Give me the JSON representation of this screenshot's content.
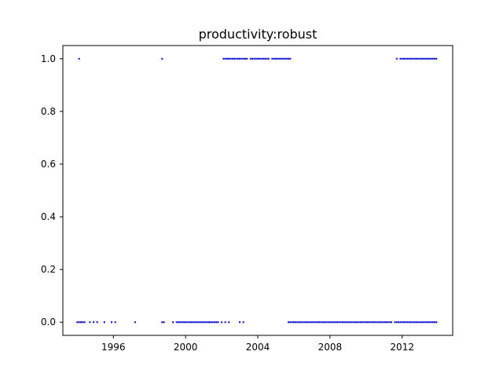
{
  "chart_data": {
    "type": "scatter",
    "title": "productivity:robust",
    "xlabel": "",
    "ylabel": "",
    "xlim": [
      1993.2,
      2014.8
    ],
    "ylim": [
      -0.05,
      1.05
    ],
    "x_ticks": [
      1996,
      2000,
      2004,
      2008,
      2012
    ],
    "x_tick_labels": [
      "1996",
      "2000",
      "2004",
      "2008",
      "2012"
    ],
    "y_ticks": [
      0.0,
      0.2,
      0.4,
      0.6,
      0.8,
      1.0
    ],
    "y_tick_labels": [
      "0.0",
      "0.2",
      "0.4",
      "0.6",
      "0.8",
      "1.0"
    ],
    "color": "#0000cc",
    "grid": false,
    "series": [
      {
        "name": "y=1",
        "y": 1.0,
        "x": [
          1994.1,
          1998.7,
          2002.1,
          2002.2,
          2002.3,
          2002.4,
          2002.5,
          2002.6,
          2002.7,
          2002.8,
          2002.9,
          2003.0,
          2003.1,
          2003.2,
          2003.3,
          2003.4,
          2003.6,
          2003.7,
          2003.8,
          2003.9,
          2004.0,
          2004.1,
          2004.2,
          2004.3,
          2004.4,
          2004.5,
          2004.6,
          2004.8,
          2004.9,
          2005.0,
          2005.1,
          2005.2,
          2005.3,
          2005.4,
          2005.5,
          2005.6,
          2005.7,
          2005.8,
          2011.7,
          2011.9,
          2012.0,
          2012.1,
          2012.2,
          2012.3,
          2012.4,
          2012.5,
          2012.6,
          2012.7,
          2012.8,
          2012.9,
          2013.0,
          2013.1,
          2013.2,
          2013.3,
          2013.4,
          2013.5,
          2013.6,
          2013.7,
          2013.8,
          2013.9
        ]
      },
      {
        "name": "y=0",
        "y": 0.0,
        "x": [
          1994.0,
          1994.1,
          1994.2,
          1994.3,
          1994.4,
          1994.7,
          1994.9,
          1995.1,
          1995.5,
          1995.9,
          1996.1,
          1997.2,
          1998.7,
          1998.8,
          1999.3,
          1999.5,
          1999.6,
          1999.7,
          1999.8,
          1999.9,
          2000.0,
          2000.1,
          2000.2,
          2000.3,
          2000.4,
          2000.5,
          2000.6,
          2000.7,
          2000.8,
          2000.9,
          2001.0,
          2001.1,
          2001.2,
          2001.3,
          2001.4,
          2001.5,
          2001.6,
          2001.7,
          2001.8,
          2002.0,
          2002.2,
          2002.4,
          2003.0,
          2003.2,
          2005.7,
          2005.8,
          2005.9,
          2006.0,
          2006.1,
          2006.2,
          2006.3,
          2006.4,
          2006.5,
          2006.6,
          2006.7,
          2006.8,
          2006.9,
          2007.0,
          2007.1,
          2007.2,
          2007.3,
          2007.4,
          2007.5,
          2007.6,
          2007.7,
          2007.8,
          2007.9,
          2008.0,
          2008.1,
          2008.2,
          2008.3,
          2008.4,
          2008.5,
          2008.6,
          2008.7,
          2008.8,
          2008.9,
          2009.0,
          2009.1,
          2009.2,
          2009.3,
          2009.4,
          2009.5,
          2009.6,
          2009.7,
          2009.8,
          2009.9,
          2010.0,
          2010.1,
          2010.2,
          2010.3,
          2010.4,
          2010.5,
          2010.6,
          2010.7,
          2010.8,
          2010.9,
          2011.0,
          2011.1,
          2011.2,
          2011.3,
          2011.4,
          2011.6,
          2011.7,
          2011.8,
          2011.9,
          2012.0,
          2012.1,
          2012.2,
          2012.3,
          2012.4,
          2012.5,
          2012.6,
          2012.7,
          2012.8,
          2012.9,
          2013.0,
          2013.1,
          2013.2,
          2013.3,
          2013.4,
          2013.5,
          2013.6,
          2013.7,
          2013.8,
          2013.9
        ]
      }
    ]
  }
}
